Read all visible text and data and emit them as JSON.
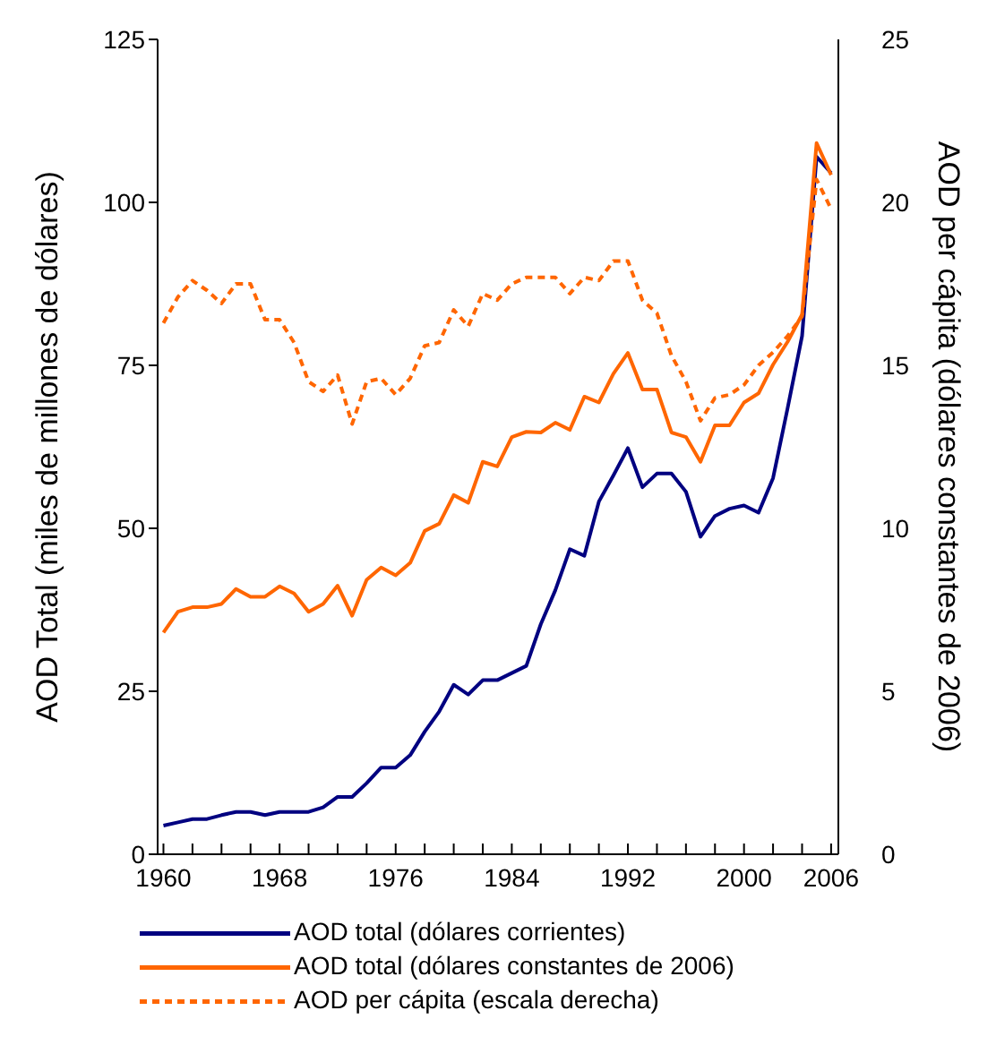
{
  "chart_data": {
    "type": "line",
    "ylabel": "AOD Total (miles de millones de dólares)",
    "y2label": "AOD per cápita (dólares constantes de 2006)",
    "x": [
      1960,
      1961,
      1962,
      1963,
      1964,
      1965,
      1966,
      1967,
      1968,
      1969,
      1970,
      1971,
      1972,
      1973,
      1974,
      1975,
      1976,
      1977,
      1978,
      1979,
      1980,
      1981,
      1982,
      1983,
      1984,
      1985,
      1986,
      1987,
      1988,
      1989,
      1990,
      1991,
      1992,
      1993,
      1994,
      1995,
      1996,
      1997,
      1998,
      1999,
      2000,
      2001,
      2002,
      2003,
      2004,
      2005,
      2006
    ],
    "series": [
      {
        "name": "AOD total (dólares corrientes)",
        "color": "#000080",
        "line_style": "solid",
        "values": [
          4.4,
          4.9,
          5.4,
          5.4,
          6.0,
          6.5,
          6.5,
          6.0,
          6.5,
          6.5,
          6.5,
          7.2,
          8.8,
          8.8,
          10.9,
          13.3,
          13.3,
          15.2,
          18.8,
          21.9,
          26.0,
          24.5,
          26.7,
          26.7,
          27.8,
          28.9,
          35.3,
          40.5,
          46.8,
          45.8,
          54.1,
          58.1,
          62.3,
          56.3,
          58.4,
          58.4,
          55.6,
          48.7,
          51.9,
          53.0,
          53.5,
          52.4,
          57.7,
          68.4,
          79.5,
          107,
          104.5
        ]
      },
      {
        "name": "AOD total (dólares constantes de 2006)",
        "color": "#ff6600",
        "line_style": "solid",
        "values": [
          34.0,
          37.2,
          37.9,
          37.9,
          38.4,
          40.7,
          39.5,
          39.5,
          41.1,
          40.0,
          37.2,
          38.4,
          41.2,
          36.6,
          42.1,
          44.0,
          42.8,
          44.7,
          49.6,
          50.7,
          55.1,
          53.9,
          60.2,
          59.5,
          64.0,
          64.8,
          64.7,
          66.2,
          65.1,
          70.2,
          69.3,
          73.7,
          76.9,
          71.3,
          71.3,
          64.7,
          64.0,
          60.2,
          65.8,
          65.8,
          69.3,
          70.7,
          75.1,
          78.6,
          82.8,
          109.1,
          104.2
        ]
      },
      {
        "name": "AOD per cápita (escala derecha)",
        "color": "#ff6600",
        "line_style": "dashed",
        "axis": "y2",
        "values": [
          16.3,
          17.1,
          17.6,
          17.3,
          16.9,
          17.5,
          17.5,
          16.4,
          16.4,
          15.7,
          14.5,
          14.2,
          14.7,
          13.2,
          14.5,
          14.6,
          14.1,
          14.6,
          15.6,
          15.7,
          16.7,
          16.2,
          17.2,
          17.0,
          17.5,
          17.7,
          17.7,
          17.7,
          17.2,
          17.7,
          17.6,
          18.2,
          18.2,
          17.0,
          16.6,
          15.3,
          14.5,
          13.3,
          14.0,
          14.1,
          14.4,
          15.0,
          15.4,
          15.9,
          16.5,
          20.7,
          19.8
        ]
      }
    ],
    "xlim": [
      1959.6,
      2006.5
    ],
    "xticks": [
      1960,
      {
        "value": 1962,
        "label": null
      },
      {
        "value": 1964,
        "label": null
      },
      {
        "value": 1966,
        "label": null
      },
      1968,
      {
        "value": 1970,
        "label": null
      },
      {
        "value": 1972,
        "label": null
      },
      {
        "value": 1974,
        "label": null
      },
      1976,
      {
        "value": 1978,
        "label": null
      },
      {
        "value": 1980,
        "label": null
      },
      {
        "value": 1982,
        "label": null
      },
      1984,
      {
        "value": 1986,
        "label": null
      },
      {
        "value": 1988,
        "label": null
      },
      {
        "value": 1990,
        "label": null
      },
      1992,
      {
        "value": 1994,
        "label": null
      },
      {
        "value": 1996,
        "label": null
      },
      {
        "value": 1998,
        "label": null
      },
      2000,
      {
        "value": 2002,
        "label": null
      },
      {
        "value": 2004,
        "label": null
      },
      2006
    ],
    "ylim": [
      0,
      125
    ],
    "yticks": [
      0,
      25,
      50,
      75,
      100,
      125
    ],
    "y2lim": [
      0,
      25
    ],
    "y2ticks": [
      0,
      5,
      10,
      15,
      20,
      25
    ],
    "grid": false,
    "legend": "bottom",
    "marker": "none"
  }
}
